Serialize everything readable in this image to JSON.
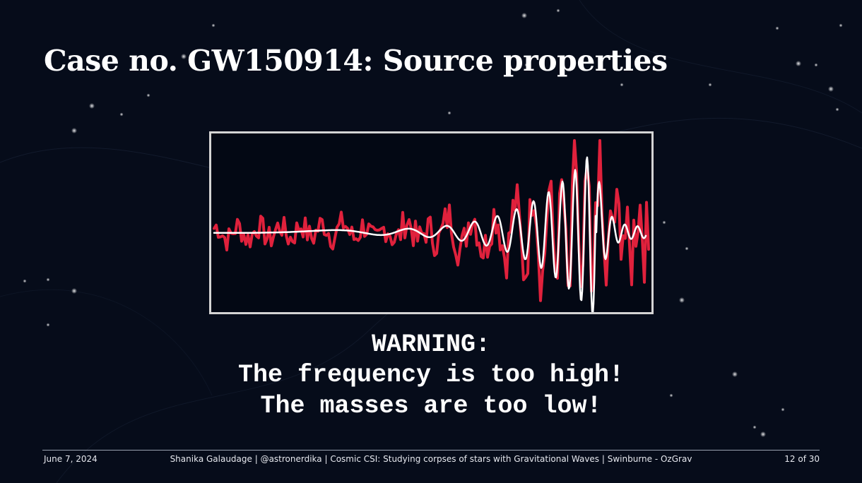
{
  "slide": {
    "title": "Case no. GW150914: Source properties",
    "warning": {
      "line1": "WARNING:",
      "line2": "The frequency is too high!",
      "line3": "The masses are too low!"
    }
  },
  "footer": {
    "date": "June 7, 2024",
    "center": "Shanika Galaudage | @astronerdika | Cosmic CSI: Studying corpses of stars with Gravitational Waves | Swinburne - OzGrav",
    "page": "12  of 30"
  },
  "colors": {
    "background": "#060c1a",
    "data_trace": "#e0213c",
    "template_trace": "#ffffff",
    "frame": "#d4d4d4"
  }
}
